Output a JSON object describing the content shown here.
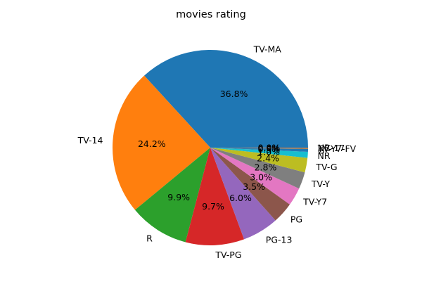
{
  "chart_data": {
    "type": "pie",
    "title": "movies rating",
    "start_angle_deg": 0,
    "direction": "counterclockwise",
    "legend": "none",
    "slices": [
      {
        "label": "TV-MA",
        "value": 36.8,
        "pct_label": "36.8%",
        "color": "#1f77b4"
      },
      {
        "label": "TV-14",
        "value": 24.2,
        "pct_label": "24.2%",
        "color": "#ff7f0e"
      },
      {
        "label": "R",
        "value": 9.9,
        "pct_label": "9.9%",
        "color": "#2ca02c"
      },
      {
        "label": "TV-PG",
        "value": 9.7,
        "pct_label": "9.7%",
        "color": "#d62728"
      },
      {
        "label": "PG-13",
        "value": 6.0,
        "pct_label": "6.0%",
        "color": "#9467bd"
      },
      {
        "label": "PG",
        "value": 3.5,
        "pct_label": "3.5%",
        "color": "#8c564b"
      },
      {
        "label": "TV-Y7",
        "value": 3.0,
        "pct_label": "3.0%",
        "color": "#e377c2"
      },
      {
        "label": "TV-Y",
        "value": 2.8,
        "pct_label": "2.8%",
        "color": "#7f7f7f"
      },
      {
        "label": "TV-G",
        "value": 2.4,
        "pct_label": "2.4%",
        "color": "#bcbd22"
      },
      {
        "label": "NR",
        "value": 1.0,
        "pct_label": "1.0%",
        "color": "#17becf"
      },
      {
        "label": "G",
        "value": 0.5,
        "pct_label": "0.5%",
        "color": "#1f77b4"
      },
      {
        "label": "TV-Y7-FV",
        "value": 0.1,
        "pct_label": "0.1%",
        "color": "#ff7f0e"
      },
      {
        "label": "NC-17",
        "value": 0.04,
        "pct_label": "0.0%",
        "color": "#2ca02c"
      },
      {
        "label": "UR",
        "value": 0.04,
        "pct_label": "0.0%",
        "color": "#d62728"
      }
    ]
  }
}
